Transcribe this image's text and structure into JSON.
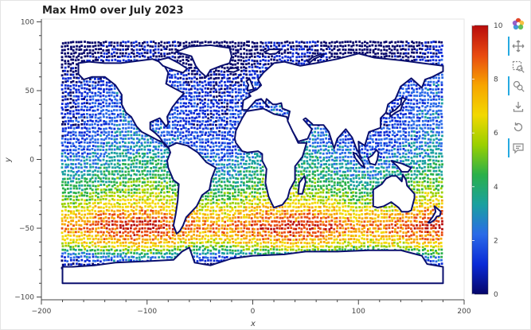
{
  "chart_data": {
    "type": "scatter",
    "title": "Max Hm0 over July 2023",
    "xlabel": "x",
    "ylabel": "y",
    "xlim": [
      -200,
      200
    ],
    "ylim": [
      -102,
      102
    ],
    "x_ticks": [
      -200,
      -100,
      0,
      100,
      200
    ],
    "x_tick_labels": [
      "−200",
      "−100",
      "0",
      "100",
      "200"
    ],
    "y_ticks": [
      -100,
      -50,
      0,
      50,
      100
    ],
    "y_tick_labels": [
      "−100",
      "−50",
      "0",
      "50",
      "100"
    ],
    "grid": false,
    "colorbar": {
      "min": 0,
      "max": 10,
      "ticks": [
        0,
        2,
        4,
        6,
        8,
        10
      ],
      "tick_labels": [
        "0",
        "2",
        "4",
        "6",
        "8",
        "10"
      ],
      "palette": [
        "#06066a",
        "#0a2ad6",
        "#2a6ae8",
        "#1aa0a0",
        "#2ab04a",
        "#9ad000",
        "#f2d800",
        "#f7a400",
        "#e84a10",
        "#b80c0c"
      ]
    },
    "point_region": {
      "lon_min": -180,
      "lon_max": 180,
      "lat_min": -85,
      "lat_max": 85
    },
    "latitude_profile": [
      {
        "lat": 85,
        "value": 0.3
      },
      {
        "lat": 70,
        "value": 0.8
      },
      {
        "lat": 55,
        "value": 1.8
      },
      {
        "lat": 40,
        "value": 2.0
      },
      {
        "lat": 25,
        "value": 2.0
      },
      {
        "lat": 10,
        "value": 2.6
      },
      {
        "lat": 0,
        "value": 3.2
      },
      {
        "lat": -10,
        "value": 3.8
      },
      {
        "lat": -20,
        "value": 4.6
      },
      {
        "lat": -30,
        "value": 5.8
      },
      {
        "lat": -40,
        "value": 7.4
      },
      {
        "lat": -48,
        "value": 8.6
      },
      {
        "lat": -55,
        "value": 7.8
      },
      {
        "lat": -62,
        "value": 6.4
      },
      {
        "lat": -70,
        "value": 3.0
      },
      {
        "lat": -78,
        "value": 0.8
      },
      {
        "lat": -85,
        "value": 0.3
      }
    ],
    "land_regions": [
      {
        "name": "North America",
        "polygon": [
          [
            -165,
            70
          ],
          [
            -155,
            71
          ],
          [
            -140,
            70
          ],
          [
            -125,
            70
          ],
          [
            -95,
            73
          ],
          [
            -85,
            70
          ],
          [
            -80,
            63
          ],
          [
            -82,
            55
          ],
          [
            -75,
            52
          ],
          [
            -65,
            48
          ],
          [
            -70,
            44
          ],
          [
            -76,
            38
          ],
          [
            -81,
            31
          ],
          [
            -80,
            26
          ],
          [
            -82,
            24
          ],
          [
            -88,
            30
          ],
          [
            -97,
            27
          ],
          [
            -97,
            22
          ],
          [
            -92,
            19
          ],
          [
            -88,
            16
          ],
          [
            -83,
            10
          ],
          [
            -79,
            8
          ],
          [
            -84,
            12
          ],
          [
            -90,
            14
          ],
          [
            -95,
            16
          ],
          [
            -105,
            20
          ],
          [
            -110,
            24
          ],
          [
            -115,
            31
          ],
          [
            -120,
            34
          ],
          [
            -124,
            40
          ],
          [
            -124,
            47
          ],
          [
            -130,
            54
          ],
          [
            -140,
            60
          ],
          [
            -152,
            60
          ],
          [
            -160,
            58
          ],
          [
            -165,
            62
          ]
        ]
      },
      {
        "name": "South America",
        "polygon": [
          [
            -80,
            9
          ],
          [
            -72,
            12
          ],
          [
            -62,
            10
          ],
          [
            -52,
            5
          ],
          [
            -44,
            -2
          ],
          [
            -35,
            -6
          ],
          [
            -39,
            -14
          ],
          [
            -41,
            -22
          ],
          [
            -48,
            -26
          ],
          [
            -53,
            -34
          ],
          [
            -58,
            -38
          ],
          [
            -63,
            -42
          ],
          [
            -66,
            -48
          ],
          [
            -69,
            -52
          ],
          [
            -72,
            -54
          ],
          [
            -75,
            -48
          ],
          [
            -73,
            -40
          ],
          [
            -71,
            -30
          ],
          [
            -70,
            -18
          ],
          [
            -75,
            -15
          ],
          [
            -80,
            -6
          ],
          [
            -81,
            -1
          ],
          [
            -78,
            5
          ]
        ]
      },
      {
        "name": "Africa",
        "polygon": [
          [
            -17,
            15
          ],
          [
            -16,
            21
          ],
          [
            -10,
            30
          ],
          [
            -6,
            35
          ],
          [
            10,
            37
          ],
          [
            20,
            33
          ],
          [
            32,
            31
          ],
          [
            34,
            27
          ],
          [
            43,
            12
          ],
          [
            51,
            12
          ],
          [
            47,
            2
          ],
          [
            40,
            -5
          ],
          [
            40,
            -15
          ],
          [
            35,
            -22
          ],
          [
            33,
            -28
          ],
          [
            28,
            -33
          ],
          [
            20,
            -35
          ],
          [
            18,
            -32
          ],
          [
            15,
            -27
          ],
          [
            12,
            -17
          ],
          [
            13,
            -7
          ],
          [
            9,
            -1
          ],
          [
            9,
            4
          ],
          [
            5,
            6
          ],
          [
            -5,
            5
          ],
          [
            -10,
            6
          ],
          [
            -16,
            12
          ]
        ]
      },
      {
        "name": "Eurasia",
        "polygon": [
          [
            -10,
            36
          ],
          [
            -9,
            43
          ],
          [
            -2,
            46
          ],
          [
            -4,
            48
          ],
          [
            4,
            51
          ],
          [
            8,
            54
          ],
          [
            5,
            58
          ],
          [
            10,
            63
          ],
          [
            20,
            70
          ],
          [
            30,
            71
          ],
          [
            45,
            68
          ],
          [
            60,
            70
          ],
          [
            80,
            73
          ],
          [
            100,
            77
          ],
          [
            115,
            74
          ],
          [
            140,
            72
          ],
          [
            160,
            70
          ],
          [
            180,
            68
          ],
          [
            180,
            64
          ],
          [
            170,
            60
          ],
          [
            163,
            58
          ],
          [
            160,
            52
          ],
          [
            150,
            59
          ],
          [
            140,
            53
          ],
          [
            135,
            44
          ],
          [
            128,
            40
          ],
          [
            126,
            34
          ],
          [
            121,
            30
          ],
          [
            121,
            23
          ],
          [
            110,
            20
          ],
          [
            106,
            10
          ],
          [
            100,
            13
          ],
          [
            101,
            3
          ],
          [
            103,
            1
          ],
          [
            98,
            8
          ],
          [
            94,
            16
          ],
          [
            88,
            22
          ],
          [
            80,
            15
          ],
          [
            77,
            8
          ],
          [
            72,
            20
          ],
          [
            67,
            25
          ],
          [
            57,
            25
          ],
          [
            56,
            26
          ],
          [
            50,
            30
          ],
          [
            48,
            29
          ],
          [
            56,
            22
          ],
          [
            52,
            15
          ],
          [
            43,
            13
          ],
          [
            38,
            20
          ],
          [
            33,
            28
          ],
          [
            35,
            35
          ],
          [
            28,
            37
          ],
          [
            27,
            41
          ],
          [
            22,
            40
          ],
          [
            19,
            40
          ],
          [
            13,
            44
          ],
          [
            12,
            41
          ],
          [
            15,
            38
          ],
          [
            8,
            44
          ],
          [
            3,
            43
          ],
          [
            -5,
            36
          ]
        ]
      },
      {
        "name": "Greenland",
        "polygon": [
          [
            -73,
            78
          ],
          [
            -60,
            82
          ],
          [
            -40,
            83
          ],
          [
            -22,
            81
          ],
          [
            -20,
            75
          ],
          [
            -22,
            70
          ],
          [
            -30,
            68
          ],
          [
            -40,
            65
          ],
          [
            -44,
            60
          ],
          [
            -50,
            64
          ],
          [
            -54,
            68
          ],
          [
            -58,
            75
          ],
          [
            -67,
            77
          ]
        ]
      },
      {
        "name": "Australia",
        "polygon": [
          [
            114,
            -22
          ],
          [
            114,
            -34
          ],
          [
            118,
            -35
          ],
          [
            124,
            -34
          ],
          [
            131,
            -31
          ],
          [
            138,
            -35
          ],
          [
            141,
            -38
          ],
          [
            147,
            -38
          ],
          [
            150,
            -37
          ],
          [
            153,
            -28
          ],
          [
            153,
            -25
          ],
          [
            146,
            -19
          ],
          [
            145,
            -15
          ],
          [
            142,
            -11
          ],
          [
            141,
            -16
          ],
          [
            136,
            -12
          ],
          [
            131,
            -12
          ],
          [
            126,
            -14
          ],
          [
            122,
            -18
          ]
        ]
      },
      {
        "name": "Antarctica",
        "polygon": [
          [
            -180,
            -90
          ],
          [
            180,
            -90
          ],
          [
            180,
            -78
          ],
          [
            165,
            -76
          ],
          [
            160,
            -70
          ],
          [
            140,
            -66
          ],
          [
            110,
            -66
          ],
          [
            80,
            -67
          ],
          [
            50,
            -67
          ],
          [
            30,
            -69
          ],
          [
            0,
            -70
          ],
          [
            -20,
            -72
          ],
          [
            -40,
            -77
          ],
          [
            -55,
            -75
          ],
          [
            -60,
            -64
          ],
          [
            -67,
            -67
          ],
          [
            -75,
            -73
          ],
          [
            -100,
            -74
          ],
          [
            -130,
            -75
          ],
          [
            -150,
            -77
          ],
          [
            -170,
            -78
          ],
          [
            -180,
            -78
          ]
        ]
      },
      {
        "name": "Madagascar",
        "polygon": [
          [
            43,
            -25
          ],
          [
            44,
            -17
          ],
          [
            49,
            -12
          ],
          [
            50,
            -16
          ],
          [
            47,
            -25
          ]
        ]
      },
      {
        "name": "New Guinea",
        "polygon": [
          [
            131,
            -1
          ],
          [
            141,
            -3
          ],
          [
            150,
            -6
          ],
          [
            147,
            -9
          ],
          [
            141,
            -9
          ],
          [
            137,
            -5
          ]
        ]
      },
      {
        "name": "Borneo",
        "polygon": [
          [
            109,
            1
          ],
          [
            113,
            3
          ],
          [
            117,
            7
          ],
          [
            119,
            5
          ],
          [
            118,
            0
          ],
          [
            116,
            -4
          ],
          [
            111,
            -3
          ]
        ]
      },
      {
        "name": "Sumatra",
        "polygon": [
          [
            95,
            5
          ],
          [
            98,
            4
          ],
          [
            104,
            -2
          ],
          [
            106,
            -6
          ],
          [
            102,
            -4
          ],
          [
            97,
            1
          ]
        ]
      },
      {
        "name": "Japan",
        "polygon": [
          [
            130,
            31
          ],
          [
            135,
            34
          ],
          [
            140,
            36
          ],
          [
            142,
            41
          ],
          [
            145,
            44
          ],
          [
            141,
            45
          ],
          [
            140,
            40
          ],
          [
            135,
            36
          ],
          [
            130,
            34
          ]
        ]
      },
      {
        "name": "Great Britain",
        "polygon": [
          [
            -5,
            50
          ],
          [
            1,
            51
          ],
          [
            0,
            53
          ],
          [
            -2,
            57
          ],
          [
            -3,
            58.5
          ],
          [
            -6,
            57
          ],
          [
            -4,
            54
          ],
          [
            -5,
            52
          ]
        ]
      },
      {
        "name": "Iceland",
        "polygon": [
          [
            -24,
            64
          ],
          [
            -22,
            66
          ],
          [
            -16,
            66.5
          ],
          [
            -13,
            65
          ],
          [
            -18,
            63.5
          ]
        ]
      },
      {
        "name": "Baffin Island",
        "polygon": [
          [
            -90,
            72
          ],
          [
            -80,
            74
          ],
          [
            -70,
            70
          ],
          [
            -62,
            66
          ],
          [
            -66,
            63
          ],
          [
            -75,
            65
          ],
          [
            -85,
            68
          ]
        ]
      },
      {
        "name": "New Zealand",
        "polygon": [
          [
            172,
            -34
          ],
          [
            178,
            -38
          ],
          [
            177,
            -41
          ],
          [
            174,
            -41.5
          ],
          [
            172,
            -44
          ],
          [
            168,
            -46
          ],
          [
            166,
            -46
          ],
          [
            170,
            -42
          ],
          [
            173,
            -38
          ]
        ]
      },
      {
        "name": "Svalbard",
        "polygon": [
          [
            11,
            78
          ],
          [
            16,
            80
          ],
          [
            27,
            80
          ],
          [
            22,
            77
          ],
          [
            16,
            76.5
          ]
        ]
      },
      {
        "name": "Novaya Zemlya",
        "polygon": [
          [
            52,
            71
          ],
          [
            56,
            74
          ],
          [
            64,
            76.5
          ],
          [
            68,
            76.5
          ],
          [
            58,
            73
          ],
          [
            54,
            70.5
          ]
        ]
      }
    ]
  }
}
